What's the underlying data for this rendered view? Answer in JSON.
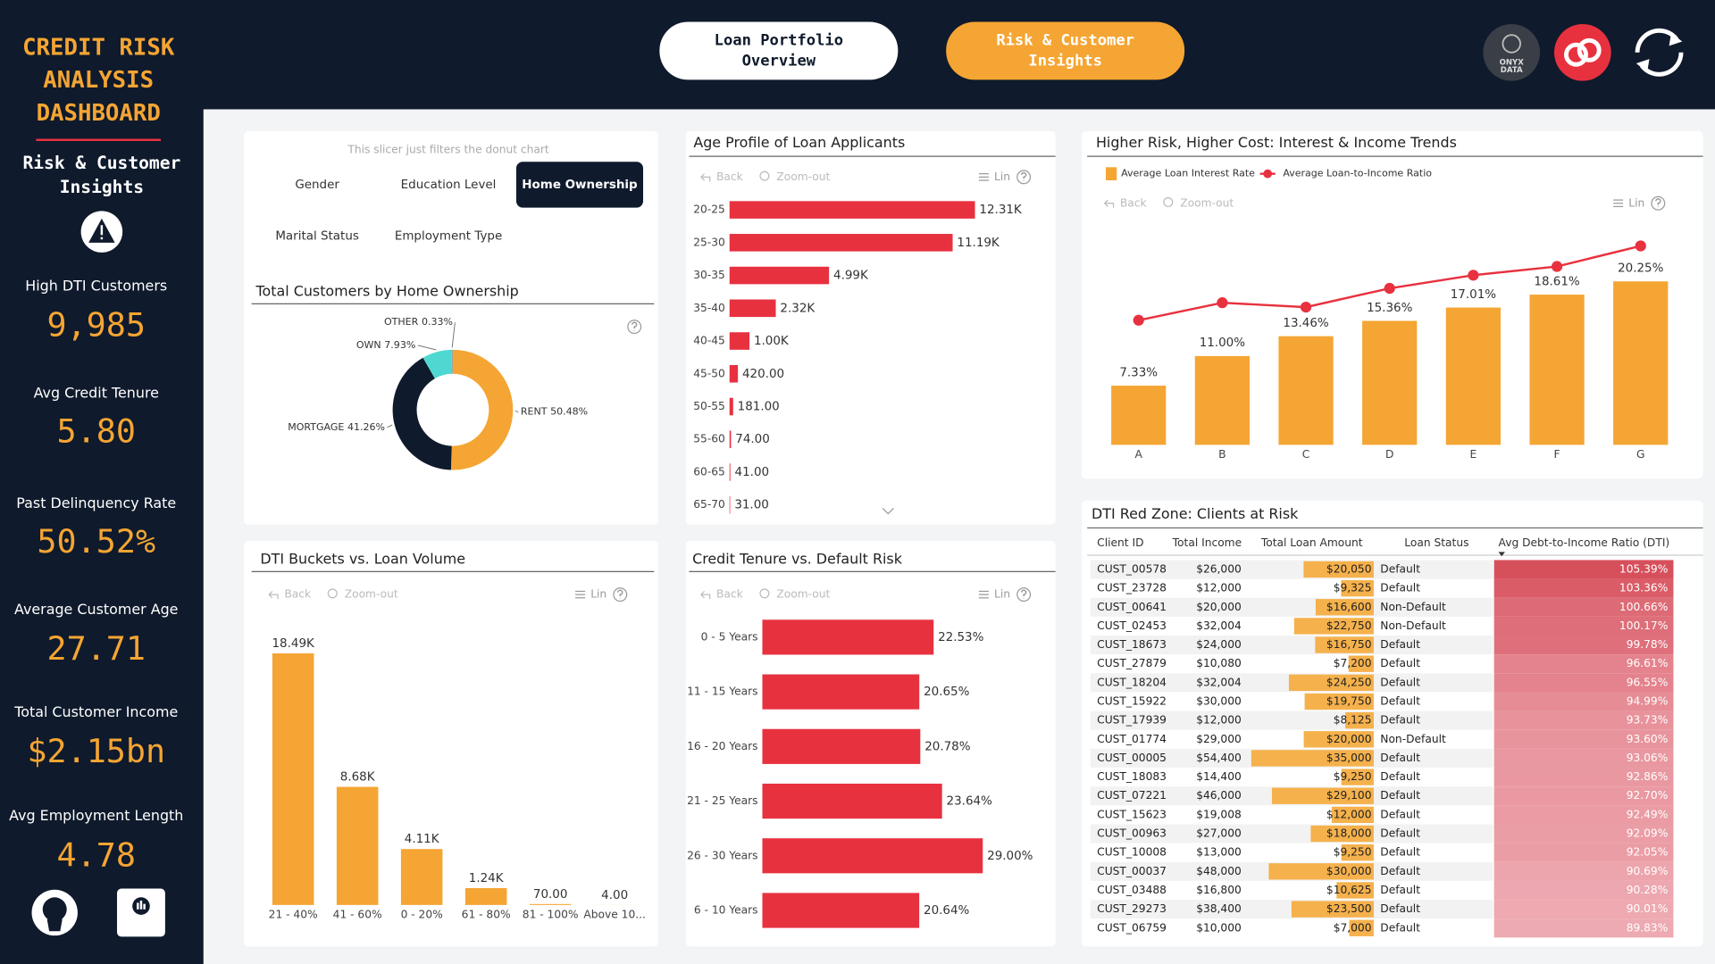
{
  "header": {
    "nav": [
      [
        "Loan Portfolio",
        "Overview"
      ],
      [
        "Risk & Customer",
        "Insights"
      ]
    ],
    "logo_text": [
      "ONYX",
      "DATA"
    ]
  },
  "sidebar": {
    "title": [
      "CREDIT RISK",
      "ANALYSIS",
      "DASHBOARD"
    ],
    "subtitle": [
      "Risk & Customer",
      "Insights"
    ],
    "kpis": [
      {
        "label": "High DTI Customers",
        "value": "9,985"
      },
      {
        "label": "Avg Credit Tenure",
        "value": "5.80"
      },
      {
        "label": "Past Delinquency Rate",
        "value": "50.52%"
      },
      {
        "label": "Average Customer Age",
        "value": "27.71"
      },
      {
        "label": "Total Customer Income",
        "value": "$2.15bn"
      },
      {
        "label": "Avg Employment Length",
        "value": "4.78"
      }
    ]
  },
  "slicer": {
    "note": "This slicer just filters the donut chart",
    "options": [
      "Gender",
      "Education Level",
      "Home Ownership",
      "Marital Status",
      "Employment Type"
    ],
    "selected_index": 2
  },
  "toolbar": {
    "back": "Back",
    "zoom": "Zoom-out",
    "scale": "Lin"
  },
  "chart_data": [
    {
      "type": "donut",
      "title": "Total Customers by Home Ownership",
      "categories": [
        "RENT",
        "MORTGAGE",
        "OWN",
        "OTHER"
      ],
      "values": [
        50.48,
        41.26,
        7.93,
        0.33
      ],
      "value_labels": [
        "50.48%",
        "41.26%",
        "7.93%",
        "0.33%"
      ],
      "colors": [
        "#f5a533",
        "#0f1a2c",
        "#4fd8d1",
        "#9aa0a6"
      ]
    },
    {
      "type": "bar",
      "orientation": "horizontal",
      "title": "Age Profile of Loan Applicants",
      "categories": [
        "20-25",
        "25-30",
        "30-35",
        "35-40",
        "40-45",
        "45-50",
        "50-55",
        "55-60",
        "60-65",
        "65-70"
      ],
      "values": [
        12310,
        11190,
        4990,
        2320,
        1000,
        420,
        181,
        74,
        41,
        31
      ],
      "value_labels": [
        "12.31K",
        "11.19K",
        "4.99K",
        "2.32K",
        "1.00K",
        "420.00",
        "181.00",
        "74.00",
        "41.00",
        "31.00"
      ],
      "color": "#e8313f",
      "xlim": [
        0,
        13000
      ]
    },
    {
      "type": "combo",
      "title": "Higher Risk, Higher Cost: Interest & Income Trends",
      "categories": [
        "A",
        "B",
        "C",
        "D",
        "E",
        "F",
        "G"
      ],
      "series": [
        {
          "name": "Average Loan Interest Rate",
          "color": "#f5a533",
          "kind": "bar",
          "values": [
            7.33,
            11.0,
            13.46,
            15.36,
            17.01,
            18.61,
            20.25
          ],
          "value_labels": [
            "7.33%",
            "11.00%",
            "13.46%",
            "15.36%",
            "17.01%",
            "18.61%",
            "20.25%"
          ]
        },
        {
          "name": "Average Loan-to-Income Ratio",
          "color": "#e8313f",
          "kind": "line",
          "axis": "y2",
          "values": [
            0.1425,
            0.1625,
            0.1575,
            0.179,
            0.194,
            0.204,
            0.2275
          ]
        }
      ],
      "ylim": [
        0,
        26
      ],
      "y2lim": [
        0,
        0.24
      ]
    },
    {
      "type": "bar",
      "orientation": "vertical",
      "title": "DTI Buckets vs. Loan Volume",
      "categories": [
        "21 - 40%",
        "41 - 60%",
        "0 - 20%",
        "61 - 80%",
        "81 - 100%",
        "Above 10..."
      ],
      "values": [
        18490,
        8680,
        4110,
        1240,
        70,
        4
      ],
      "value_labels": [
        "18.49K",
        "8.68K",
        "4.11K",
        "1.24K",
        "70.00",
        "4.00"
      ],
      "color": "#f5a533",
      "ylim": [
        0,
        20000
      ]
    },
    {
      "type": "bar",
      "orientation": "horizontal",
      "title": "Credit Tenure vs. Default Risk",
      "categories": [
        "0 - 5 Years",
        "11 - 15 Years",
        "16 - 20 Years",
        "21 - 25 Years",
        "26 - 30 Years",
        "6 - 10 Years"
      ],
      "values": [
        22.53,
        20.65,
        20.78,
        23.64,
        29.0,
        20.64
      ],
      "value_labels": [
        "22.53%",
        "20.65%",
        "20.78%",
        "23.64%",
        "29.00%",
        "20.64%"
      ],
      "color": "#e8313f",
      "xlim": [
        0,
        30
      ]
    }
  ],
  "table": {
    "title": "DTI Red Zone: Clients at Risk",
    "header": [
      "Client ID",
      "Total Income",
      "Total Loan Amount",
      "Loan Status",
      "Avg Debt-to-Income Ratio (DTI)"
    ],
    "rows": [
      [
        "CUST_00578",
        "$26,000",
        {
          "value": 20050,
          "label": "$20,050"
        },
        "Default",
        {
          "value": 105.39,
          "label": "105.39%"
        }
      ],
      [
        "CUST_23728",
        "$12,000",
        {
          "value": 9325,
          "label": "$9,325"
        },
        "Default",
        {
          "value": 103.36,
          "label": "103.36%"
        }
      ],
      [
        "CUST_00641",
        "$20,000",
        {
          "value": 16600,
          "label": "$16,600"
        },
        "Non-Default",
        {
          "value": 100.66,
          "label": "100.66%"
        }
      ],
      [
        "CUST_02453",
        "$32,004",
        {
          "value": 22750,
          "label": "$22,750"
        },
        "Non-Default",
        {
          "value": 100.17,
          "label": "100.17%"
        }
      ],
      [
        "CUST_18673",
        "$24,000",
        {
          "value": 16750,
          "label": "$16,750"
        },
        "Default",
        {
          "value": 99.78,
          "label": "99.78%"
        }
      ],
      [
        "CUST_27879",
        "$10,080",
        {
          "value": 7200,
          "label": "$7,200"
        },
        "Default",
        {
          "value": 96.61,
          "label": "96.61%"
        }
      ],
      [
        "CUST_18204",
        "$32,004",
        {
          "value": 24250,
          "label": "$24,250"
        },
        "Default",
        {
          "value": 96.55,
          "label": "96.55%"
        }
      ],
      [
        "CUST_15922",
        "$30,000",
        {
          "value": 19750,
          "label": "$19,750"
        },
        "Default",
        {
          "value": 94.99,
          "label": "94.99%"
        }
      ],
      [
        "CUST_17939",
        "$12,000",
        {
          "value": 8125,
          "label": "$8,125"
        },
        "Default",
        {
          "value": 93.73,
          "label": "93.73%"
        }
      ],
      [
        "CUST_01774",
        "$29,000",
        {
          "value": 20000,
          "label": "$20,000"
        },
        "Non-Default",
        {
          "value": 93.6,
          "label": "93.60%"
        }
      ],
      [
        "CUST_00005",
        "$54,400",
        {
          "value": 35000,
          "label": "$35,000"
        },
        "Default",
        {
          "value": 93.06,
          "label": "93.06%"
        }
      ],
      [
        "CUST_18083",
        "$14,400",
        {
          "value": 9250,
          "label": "$9,250"
        },
        "Default",
        {
          "value": 92.86,
          "label": "92.86%"
        }
      ],
      [
        "CUST_07221",
        "$46,000",
        {
          "value": 29100,
          "label": "$29,100"
        },
        "Default",
        {
          "value": 92.7,
          "label": "92.70%"
        }
      ],
      [
        "CUST_15623",
        "$19,008",
        {
          "value": 12000,
          "label": "$12,000"
        },
        "Default",
        {
          "value": 92.49,
          "label": "92.49%"
        }
      ],
      [
        "CUST_00963",
        "$27,000",
        {
          "value": 18000,
          "label": "$18,000"
        },
        "Default",
        {
          "value": 92.09,
          "label": "92.09%"
        }
      ],
      [
        "CUST_10008",
        "$13,000",
        {
          "value": 9250,
          "label": "$9,250"
        },
        "Default",
        {
          "value": 92.05,
          "label": "92.05%"
        }
      ],
      [
        "CUST_00037",
        "$48,000",
        {
          "value": 30000,
          "label": "$30,000"
        },
        "Default",
        {
          "value": 90.69,
          "label": "90.69%"
        }
      ],
      [
        "CUST_03488",
        "$16,800",
        {
          "value": 10625,
          "label": "$10,625"
        },
        "Default",
        {
          "value": 90.28,
          "label": "90.28%"
        }
      ],
      [
        "CUST_29273",
        "$38,400",
        {
          "value": 23500,
          "label": "$23,500"
        },
        "Default",
        {
          "value": 90.01,
          "label": "90.01%"
        }
      ],
      [
        "CUST_06759",
        "$10,000",
        {
          "value": 7000,
          "label": "$7,000"
        },
        "Default",
        {
          "value": 89.83,
          "label": "89.83%"
        }
      ]
    ]
  }
}
